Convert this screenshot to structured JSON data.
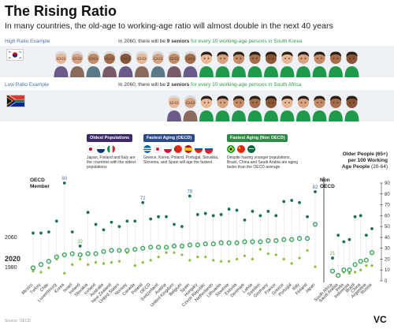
{
  "header": {
    "title": "The Rising Ratio",
    "subtitle": "In many countries, the old-age to working-age ratio will almost double in the next 40 years"
  },
  "high_example": {
    "label": "High Ratio Example",
    "caption_prefix": "In 2060, there will be ",
    "caption_count": "9 seniors",
    "caption_suffix": " for every 10 working-age persons in South Korea",
    "seniors": 9,
    "workers": 10
  },
  "low_example": {
    "label": "Low Ratio Example",
    "caption_prefix": "In 2060, there will be ",
    "caption_count": "2 seniors",
    "caption_suffix": " for every 10 working-age persons in South Africa",
    "seniors": 2,
    "workers": 10
  },
  "categories_legend": [
    {
      "title": "Oldest Populations",
      "color": "#3a2a6a",
      "desc": "Japan, Finland and Italy are the countries with the oldest populations"
    },
    {
      "title": "Fastest Aging (OECD)",
      "color": "#2c4a8a",
      "desc": "Greece, Korea, Poland, Portugal, Slovakia, Slovenia, and Spain will age the fastest"
    },
    {
      "title": "Fastest Aging (Non OECD)",
      "color": "#2e8a45",
      "desc": "Despite having younger populations, Brazil, China and Saudi Arabia are aging faster than the OECD average"
    }
  ],
  "legend": {
    "title_line1": "Older People (65+)",
    "title_line2": "per 100 Working",
    "title_line3": "Age People",
    "title_range": "(20-64)"
  },
  "years": {
    "y2060": "2060",
    "y2020": "2020",
    "y1980": "1980"
  },
  "groups": {
    "oecd_line1": "OECD",
    "oecd_line2": "Member",
    "non_oecd_line1": "Non",
    "non_oecd_line2": "OECD"
  },
  "footer": {
    "source": "Source: OECD",
    "logo": "VC"
  },
  "colors": {
    "senior_hair": "#d9d9d9",
    "worker_shirt": "#1f9a4a",
    "dot_1980": "#8bbd3c",
    "dot_2020": "#3aa35a",
    "dot_2060": "#1f6f4e",
    "accent_blue": "#4a6fa5"
  },
  "chart_data": {
    "type": "scatter",
    "ylim": [
      0,
      90
    ],
    "yticks": [
      "0",
      "10",
      "20",
      "30",
      "40",
      "50",
      "60",
      "70",
      "80",
      "90"
    ],
    "annotations": [
      {
        "country": "Korea",
        "value": "90"
      },
      {
        "country": "Ireland",
        "value": "32"
      },
      {
        "country": "Poland",
        "value": "72"
      },
      {
        "country": "Spain",
        "value": "78"
      },
      {
        "country": "Japan",
        "value": "82"
      },
      {
        "country": "South Africa",
        "value": "21"
      }
    ],
    "categories": [
      "Mexico",
      "Turkey",
      "Chile",
      "Luxembourg",
      "Korea",
      "Israel",
      "Ireland",
      "Slovakia",
      "Iceland",
      "Australia",
      "New Zealand",
      "United States",
      "Norway",
      "Canada",
      "Poland",
      "OECD",
      "Switzerland",
      "Austria",
      "United Kingdom",
      "Belgium",
      "Spain",
      "Hungary",
      "Czech Republic",
      "Netherlands",
      "Lithuania",
      "Slovenia",
      "Estonia",
      "Denmark",
      "Latvia",
      "Sweden",
      "Germany",
      "France",
      "Greece",
      "Portugal",
      "Italy",
      "Finland",
      "Japan",
      "South Africa",
      "Saudi Arabia",
      "India",
      "Indonesia",
      "Brazil",
      "China",
      "Argentina",
      "Russia"
    ],
    "group": [
      "OECD",
      "OECD",
      "OECD",
      "OECD",
      "OECD",
      "OECD",
      "OECD",
      "OECD",
      "OECD",
      "OECD",
      "OECD",
      "OECD",
      "OECD",
      "OECD",
      "OECD",
      "OECD",
      "OECD",
      "OECD",
      "OECD",
      "OECD",
      "OECD",
      "OECD",
      "OECD",
      "OECD",
      "OECD",
      "OECD",
      "OECD",
      "OECD",
      "OECD",
      "OECD",
      "OECD",
      "OECD",
      "OECD",
      "OECD",
      "OECD",
      "OECD",
      "OECD",
      "Non OECD",
      "Non OECD",
      "Non OECD",
      "Non OECD",
      "Non OECD",
      "Non OECD",
      "Non OECD",
      "Non OECD"
    ],
    "series": [
      {
        "name": "1980",
        "values": [
          9,
          8,
          12,
          20,
          7,
          15,
          20,
          15,
          17,
          16,
          17,
          18,
          26,
          14,
          17,
          19,
          22,
          26,
          26,
          24,
          19,
          22,
          22,
          19,
          18,
          18,
          20,
          23,
          20,
          29,
          25,
          24,
          20,
          16,
          21,
          28,
          13,
          8,
          6,
          8,
          7,
          8,
          10,
          14,
          14
        ]
      },
      {
        "name": "2020",
        "values": [
          12,
          15,
          18,
          22,
          24,
          25,
          24,
          25,
          25,
          27,
          28,
          28,
          28,
          29,
          30,
          31,
          31,
          31,
          32,
          32,
          33,
          33,
          34,
          34,
          35,
          35,
          35,
          36,
          36,
          36,
          37,
          37,
          38,
          38,
          39,
          39,
          52,
          9,
          5,
          10,
          10,
          15,
          18,
          19,
          26
        ]
      },
      {
        "name": "2060",
        "values": [
          44,
          44,
          45,
          55,
          90,
          45,
          32,
          63,
          52,
          47,
          54,
          50,
          55,
          55,
          72,
          57,
          59,
          59,
          52,
          50,
          78,
          61,
          62,
          60,
          61,
          66,
          65,
          56,
          64,
          60,
          64,
          60,
          73,
          74,
          72,
          59,
          82,
          21,
          42,
          36,
          38,
          59,
          60,
          42,
          48
        ]
      }
    ]
  }
}
